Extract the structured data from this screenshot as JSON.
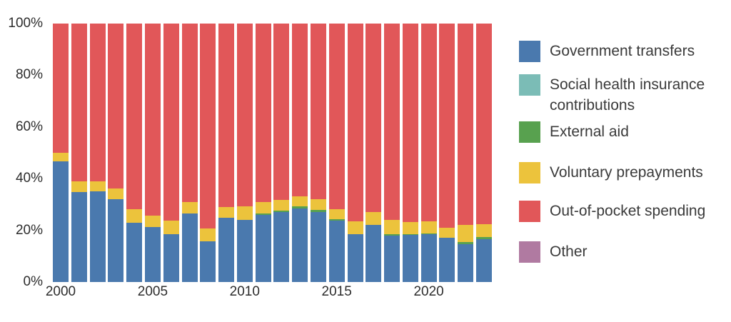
{
  "chart_data": {
    "type": "bar",
    "stacked": true,
    "title": "",
    "xlabel": "",
    "ylabel": "",
    "ylim": [
      0,
      100
    ],
    "grid": false,
    "legend_position": "right",
    "yticks": [
      "0%",
      "20%",
      "40%",
      "60%",
      "80%",
      "100%"
    ],
    "xticks": [
      "2000",
      "2005",
      "2010",
      "2015",
      "2020"
    ],
    "categories": [
      "2000",
      "2001",
      "2002",
      "2003",
      "2004",
      "2005",
      "2006",
      "2007",
      "2008",
      "2009",
      "2010",
      "2011",
      "2012",
      "2013",
      "2014",
      "2015",
      "2016",
      "2017",
      "2018",
      "2019",
      "2020",
      "2021",
      "2022",
      "2023"
    ],
    "series": [
      {
        "name": "Government transfers",
        "color": "#4a79ae",
        "values": [
          46.6,
          34.7,
          35.0,
          32.0,
          23.0,
          21.2,
          18.4,
          26.6,
          15.8,
          24.9,
          24.0,
          26.0,
          27.0,
          28.6,
          27.2,
          23.9,
          18.4,
          22.1,
          18.0,
          18.3,
          18.4,
          17.2,
          14.6,
          16.7
        ]
      },
      {
        "name": "Social health insurance contributions",
        "color": "#7bbcb6",
        "values": [
          0,
          0,
          0,
          0,
          0,
          0,
          0,
          0,
          0,
          0,
          0,
          0,
          0,
          0,
          0,
          0,
          0,
          0,
          0,
          0,
          0,
          0,
          0,
          0
        ]
      },
      {
        "name": "External aid",
        "color": "#58a14f",
        "values": [
          0,
          0,
          0,
          0,
          0,
          0,
          0,
          0,
          0,
          0,
          0,
          0.5,
          0.6,
          0.6,
          0.6,
          0.4,
          0,
          0,
          0.5,
          0.3,
          0.3,
          0,
          0.8,
          0.6
        ]
      },
      {
        "name": "Voluntary prepayments",
        "color": "#ecc33c",
        "values": [
          3.5,
          4.2,
          4.0,
          4.1,
          5.1,
          4.5,
          5.5,
          4.4,
          4.8,
          4.1,
          5.3,
          4.5,
          4.2,
          3.9,
          4.2,
          3.9,
          5.0,
          5.0,
          5.5,
          4.7,
          4.8,
          3.9,
          6.6,
          5.2
        ]
      },
      {
        "name": "Out-of-pocket spending",
        "color": "#e15759",
        "values": [
          49.9,
          61.1,
          61.0,
          63.9,
          71.9,
          74.3,
          76.1,
          69.0,
          79.4,
          71.0,
          70.7,
          69.0,
          68.2,
          66.9,
          68.0,
          71.8,
          76.6,
          72.9,
          76.0,
          76.7,
          76.5,
          78.9,
          78.0,
          77.5
        ]
      },
      {
        "name": "Other",
        "color": "#b07aa1",
        "values": [
          0,
          0,
          0,
          0,
          0,
          0,
          0,
          0,
          0,
          0,
          0,
          0,
          0,
          0,
          0,
          0,
          0,
          0,
          0,
          0,
          0,
          0,
          0,
          0
        ]
      }
    ]
  }
}
